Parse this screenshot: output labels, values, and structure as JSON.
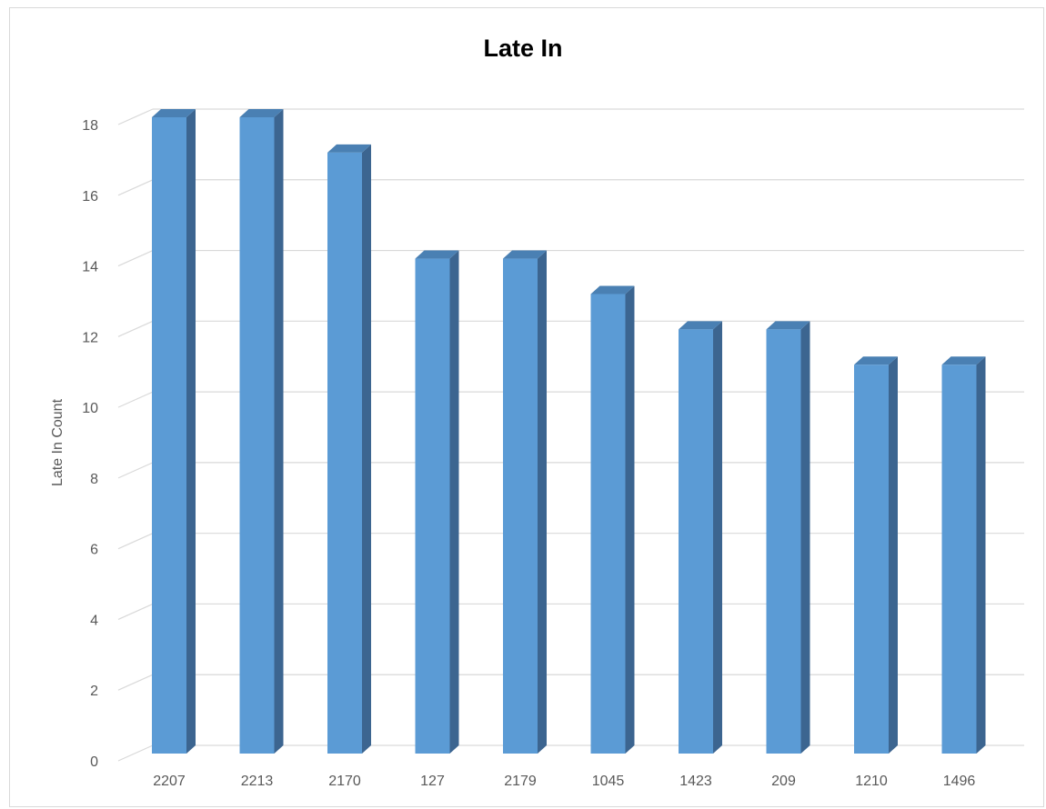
{
  "chart_data": {
    "type": "bar",
    "title": "Late In",
    "xlabel": "",
    "ylabel": "Late In Count",
    "categories": [
      "2207",
      "2213",
      "2170",
      "127",
      "2179",
      "1045",
      "1423",
      "209",
      "1210",
      "1496"
    ],
    "values": [
      18,
      18,
      17,
      14,
      14,
      13,
      12,
      12,
      11,
      11
    ],
    "ylim": [
      0,
      18
    ],
    "yticks": [
      0,
      2,
      4,
      6,
      8,
      10,
      12,
      14,
      16,
      18
    ],
    "grid": true,
    "legend": "none",
    "style": "3d-column"
  },
  "colors": {
    "bar_front": "#5b9bd5",
    "bar_side": "#3c6590",
    "bar_top": "#4a80b3",
    "grid": "#d9d9d9",
    "text": "#595959"
  }
}
